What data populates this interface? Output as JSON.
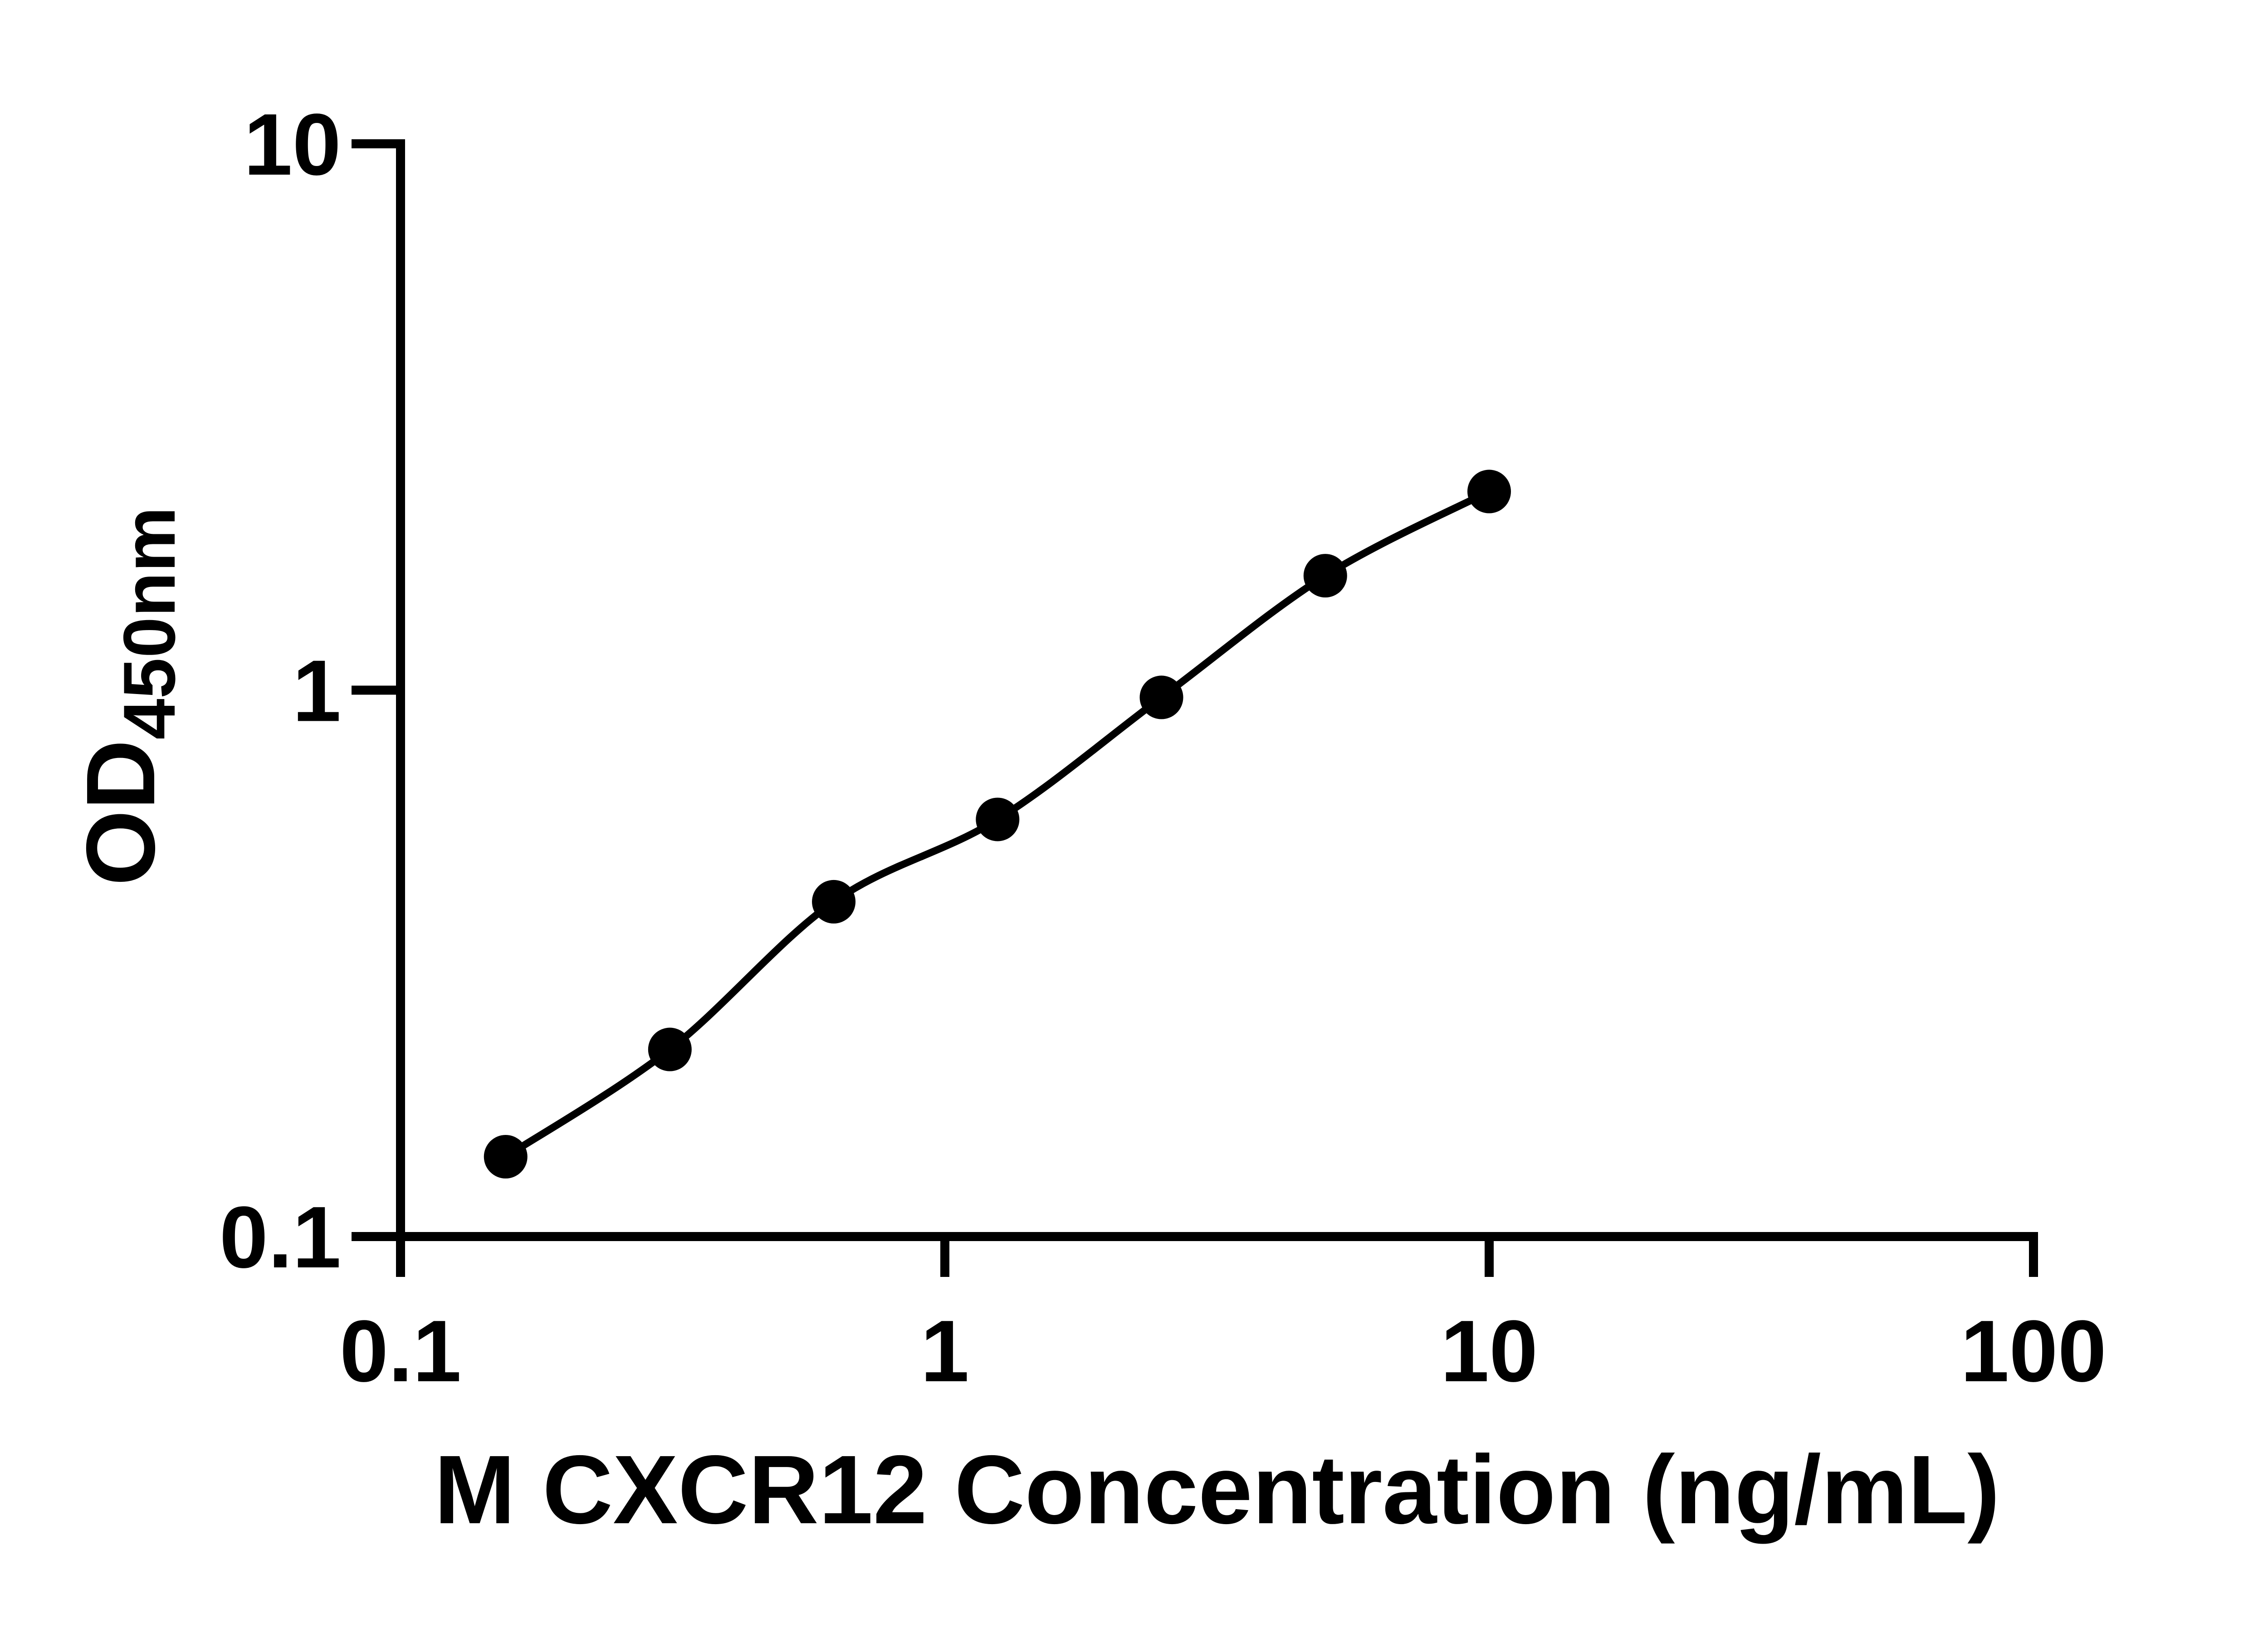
{
  "figure": {
    "background": "#ffffff",
    "ink": "#000000"
  },
  "chart_data": {
    "type": "scatter",
    "title": "",
    "xlabel": "M CXCR12 Concentration (ng/mL)",
    "ylabel": "OD450nm",
    "ylabel_main": "OD",
    "ylabel_sub": "450nm",
    "x_scale": "log",
    "y_scale": "log",
    "xlim": [
      0.1,
      100
    ],
    "ylim": [
      0.1,
      10
    ],
    "grid": false,
    "legend": false,
    "marker": "filled-circle",
    "marker_color": "#000000",
    "line_style": "smooth-fit-curve",
    "x_ticks": [
      {
        "value": 0.1,
        "label": "0.1"
      },
      {
        "value": 1,
        "label": "1"
      },
      {
        "value": 10,
        "label": "10"
      },
      {
        "value": 100,
        "label": "100"
      }
    ],
    "y_ticks": [
      {
        "value": 0.1,
        "label": "0.1"
      },
      {
        "value": 1,
        "label": "1"
      },
      {
        "value": 10,
        "label": "10"
      }
    ],
    "points": [
      {
        "x": 0.156,
        "od": 0.14
      },
      {
        "x": 0.3125,
        "od": 0.22
      },
      {
        "x": 0.625,
        "od": 0.41
      },
      {
        "x": 1.25,
        "od": 0.58
      },
      {
        "x": 2.5,
        "od": 0.97
      },
      {
        "x": 5,
        "od": 1.62
      },
      {
        "x": 10,
        "od": 2.31
      }
    ]
  }
}
